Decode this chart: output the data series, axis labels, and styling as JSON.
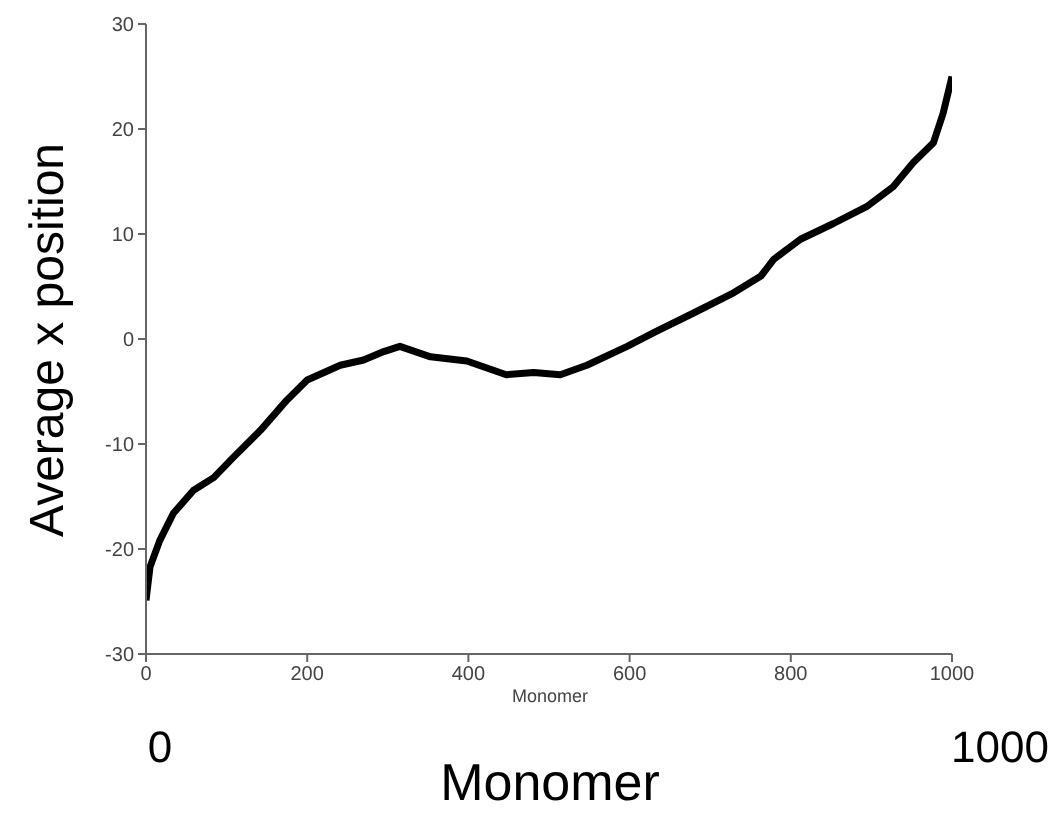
{
  "chart_data": {
    "type": "line",
    "xlabel": "Monomer",
    "ylabel": "Average x position",
    "annotations": [
      "Monomer",
      "0",
      "1000"
    ],
    "x": [
      0,
      5,
      17,
      34,
      59,
      84,
      108,
      142,
      175,
      200,
      241,
      270,
      295,
      315,
      353,
      398,
      447,
      481,
      514,
      547,
      597,
      630,
      680,
      729,
      763,
      779,
      812,
      853,
      894,
      927,
      952,
      977,
      989,
      1000
    ],
    "series": [
      {
        "color": "#000000",
        "values": [
          -24.9,
          -21.7,
          -19.2,
          -16.6,
          -14.4,
          -13.2,
          -11.3,
          -8.7,
          -5.8,
          -3.9,
          -2.5,
          -2.0,
          -1.2,
          -0.7,
          -1.7,
          -2.1,
          -3.4,
          -3.2,
          -3.4,
          -2.5,
          -0.7,
          0.6,
          2.5,
          4.4,
          6.0,
          7.6,
          9.5,
          11.0,
          12.6,
          14.5,
          16.8,
          18.7,
          21.5,
          25.0
        ]
      }
    ],
    "xlim": [
      0,
      1000
    ],
    "xticks": [
      0,
      200,
      400,
      600,
      800,
      1000
    ],
    "ylim": [
      -30,
      30
    ],
    "yticks": [
      -30,
      -20,
      -10,
      0,
      10,
      20,
      30
    ],
    "grid": false,
    "legend": false,
    "marker": "none",
    "line_style": "solid"
  }
}
